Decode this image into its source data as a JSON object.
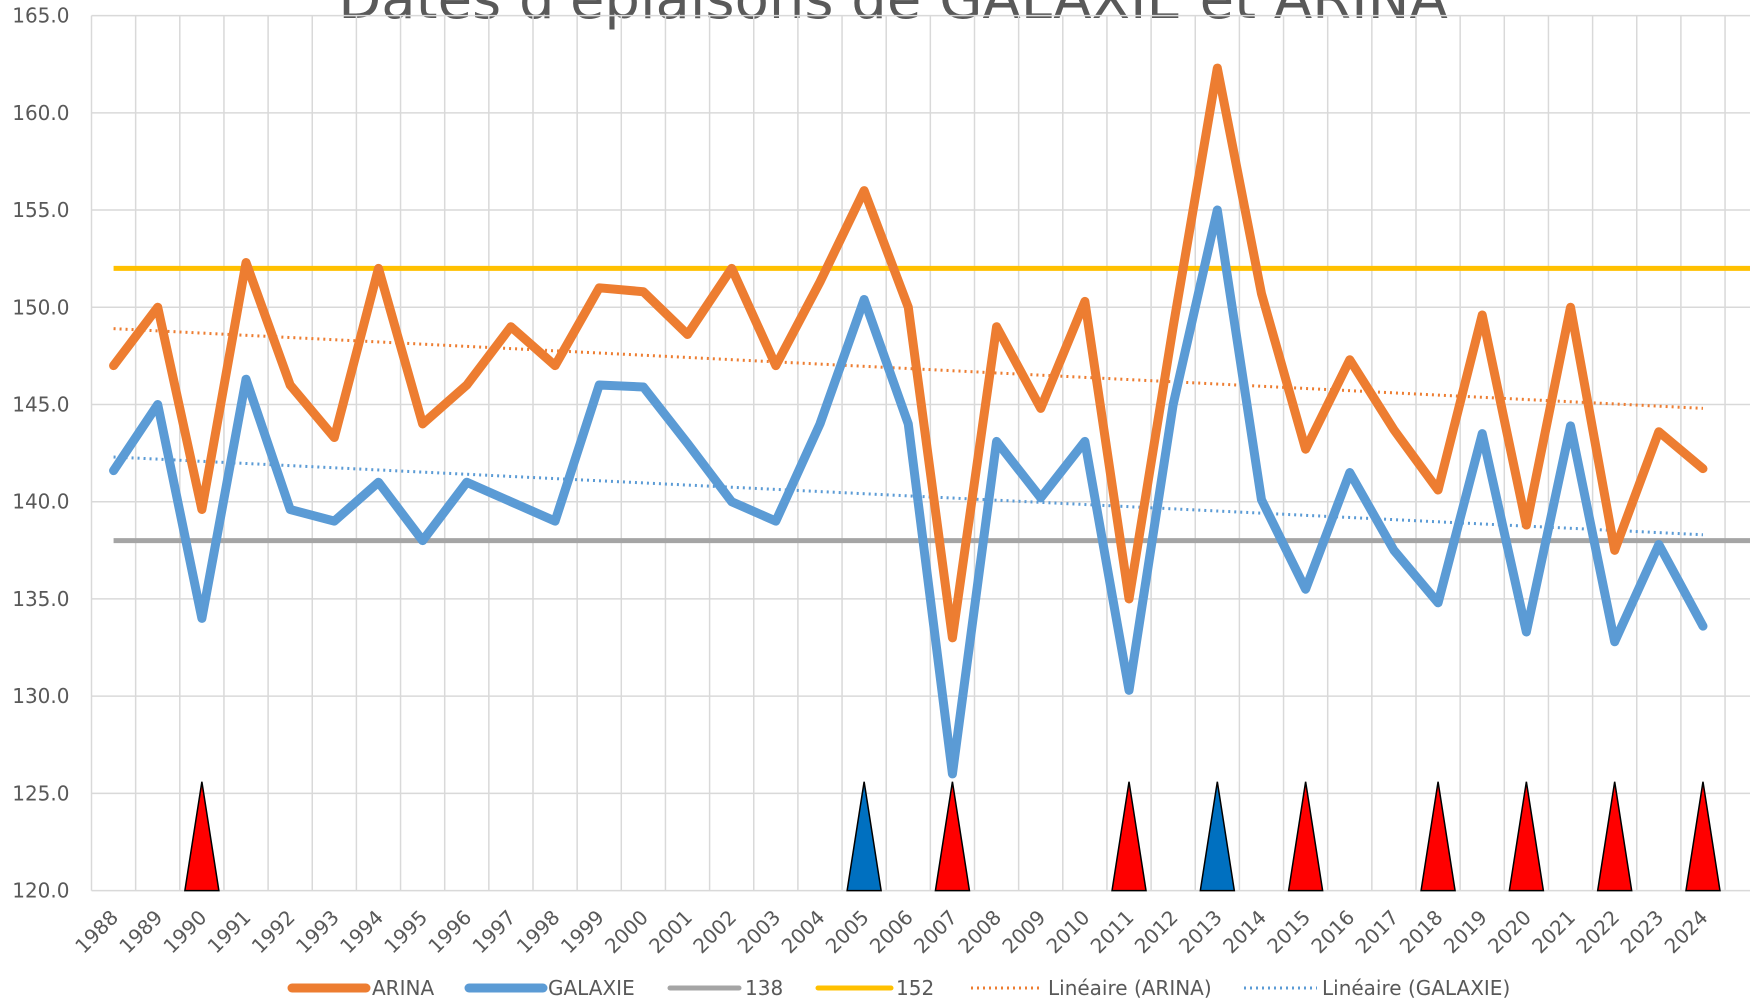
{
  "chart_data": {
    "type": "line",
    "title": "Dates d'épiaisons de GALAXIE et ARINA",
    "categories": [
      "1988",
      "1989",
      "1990",
      "1991",
      "1992",
      "1993",
      "1994",
      "1995",
      "1996",
      "1997",
      "1998",
      "1999",
      "2000",
      "2001",
      "2002",
      "2003",
      "2004",
      "2005",
      "2006",
      "2007",
      "2008",
      "2009",
      "2010",
      "2011",
      "2012",
      "2013",
      "2014",
      "2015",
      "2016",
      "2017",
      "2018",
      "2019",
      "2020",
      "2021",
      "2022",
      "2023",
      "2024"
    ],
    "series": [
      {
        "name": "ARINA",
        "color": "#ed7d31",
        "values": [
          147,
          150,
          139.6,
          152.3,
          146,
          143.3,
          152,
          144,
          146,
          149,
          147,
          151,
          150.8,
          148.6,
          152,
          147,
          151.3,
          156,
          150,
          133,
          149,
          144.8,
          150.3,
          135,
          149,
          162.3,
          150.7,
          142.7,
          147.3,
          143.7,
          140.6,
          149.6,
          138.8,
          150,
          137.5,
          143.6,
          141.7
        ]
      },
      {
        "name": "GALAXIE",
        "color": "#5b9bd5",
        "values": [
          141.6,
          145,
          134,
          146.3,
          139.6,
          139,
          141,
          138,
          141,
          140,
          139,
          146,
          145.9,
          143,
          140,
          139,
          144,
          150.4,
          144,
          126,
          143.1,
          140.2,
          143.1,
          130.3,
          145,
          155,
          140.1,
          135.5,
          141.5,
          137.5,
          134.8,
          143.5,
          133.3,
          143.9,
          132.8,
          137.8,
          133.6
        ]
      }
    ],
    "reference_lines": [
      {
        "name": "138",
        "value": 138,
        "color": "#a5a5a5"
      },
      {
        "name": "152",
        "value": 152,
        "color": "#ffc000"
      }
    ],
    "trendlines": [
      {
        "name": "Linéaire (ARINA)",
        "color": "#ed7d31",
        "values": [
          148.9,
          144.8
        ]
      },
      {
        "name": "Linéaire (GALAXIE)",
        "color": "#5b9bd5",
        "values": [
          142.3,
          138.3
        ]
      }
    ],
    "markers": [
      {
        "x": "1990",
        "color": "#ff0000",
        "value": 125.6
      },
      {
        "x": "2005",
        "color": "#0070c0",
        "value": 125.6
      },
      {
        "x": "2007",
        "color": "#ff0000",
        "value": 125.6
      },
      {
        "x": "2011",
        "color": "#ff0000",
        "value": 125.6
      },
      {
        "x": "2013",
        "color": "#0070c0",
        "value": 125.6
      },
      {
        "x": "2015",
        "color": "#ff0000",
        "value": 125.6
      },
      {
        "x": "2018",
        "color": "#ff0000",
        "value": 125.6
      },
      {
        "x": "2020",
        "color": "#ff0000",
        "value": 125.6
      },
      {
        "x": "2022",
        "color": "#ff0000",
        "value": 125.6
      },
      {
        "x": "2024",
        "color": "#ff0000",
        "value": 125.6
      }
    ],
    "ylim": [
      120,
      165
    ],
    "yticks": [
      {
        "value": 120,
        "label": "120.0"
      },
      {
        "value": 125,
        "label": "125.0"
      },
      {
        "value": 130,
        "label": "130.0"
      },
      {
        "value": 135,
        "label": "135.0"
      },
      {
        "value": 140,
        "label": "140.0"
      },
      {
        "value": 145,
        "label": "145.0"
      },
      {
        "value": 150,
        "label": "150.0"
      },
      {
        "value": 155,
        "label": "155.0"
      },
      {
        "value": 160,
        "label": "160.0"
      },
      {
        "value": 165,
        "label": "165.0"
      }
    ],
    "grid": true
  }
}
